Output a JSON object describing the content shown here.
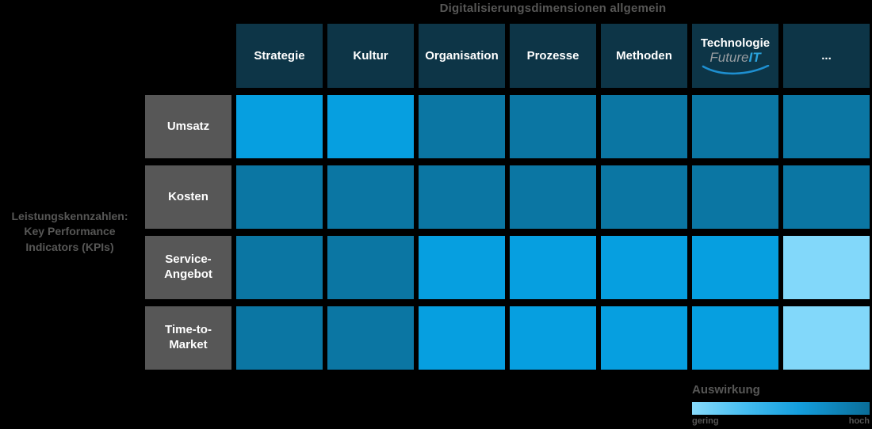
{
  "title": "Digitalisierungsdimensionen allgemein",
  "kpi_axis_label": "Leistungskennzahlen:\nKey Performance\nIndicators (KPIs)",
  "columns": [
    "Strategie",
    "Kultur",
    "Organisation",
    "Prozesse",
    "Methoden",
    "Technologie",
    "..."
  ],
  "technologie_logo": {
    "future": "Future",
    "it": "IT"
  },
  "rows": [
    "Umsatz",
    "Kosten",
    "Service-\nAngebot",
    "Time-to-\nMarket"
  ],
  "chart_data": {
    "type": "heatmap",
    "title": "Digitalisierungsdimensionen allgemein",
    "x_axis_label": "Digitalisierungsdimensionen allgemein",
    "y_axis_label": "Leistungskennzahlen: Key Performance Indicators (KPIs)",
    "x_categories": [
      "Strategie",
      "Kultur",
      "Organisation",
      "Prozesse",
      "Methoden",
      "Technologie",
      "..."
    ],
    "y_categories": [
      "Umsatz",
      "Kosten",
      "Service-Angebot",
      "Time-to-Market"
    ],
    "value_scale": {
      "name": "Auswirkung",
      "min_label": "gering",
      "max_label": "hoch"
    },
    "matrix": [
      [
        "medium",
        "medium",
        "high",
        "high",
        "high",
        "high",
        "high"
      ],
      [
        "high",
        "high",
        "high",
        "high",
        "high",
        "high",
        "high"
      ],
      [
        "high",
        "high",
        "medium",
        "medium",
        "medium",
        "medium",
        "low"
      ],
      [
        "high",
        "high",
        "medium",
        "medium",
        "medium",
        "medium",
        "low"
      ]
    ],
    "legend_position": "bottom-right"
  },
  "legend": {
    "title": "Auswirkung",
    "low_label": "gering",
    "high_label": "hoch"
  },
  "colors": {
    "background": "#000000",
    "header_cell": "#0d3547",
    "row_label_cell": "#575757",
    "impact_low": "#82d8fa",
    "impact_medium": "#069fe0",
    "impact_high": "#0b76a3",
    "text_gray": "#575756",
    "logo_gray": "#979ca0",
    "logo_blue": "#2aa3dd"
  }
}
